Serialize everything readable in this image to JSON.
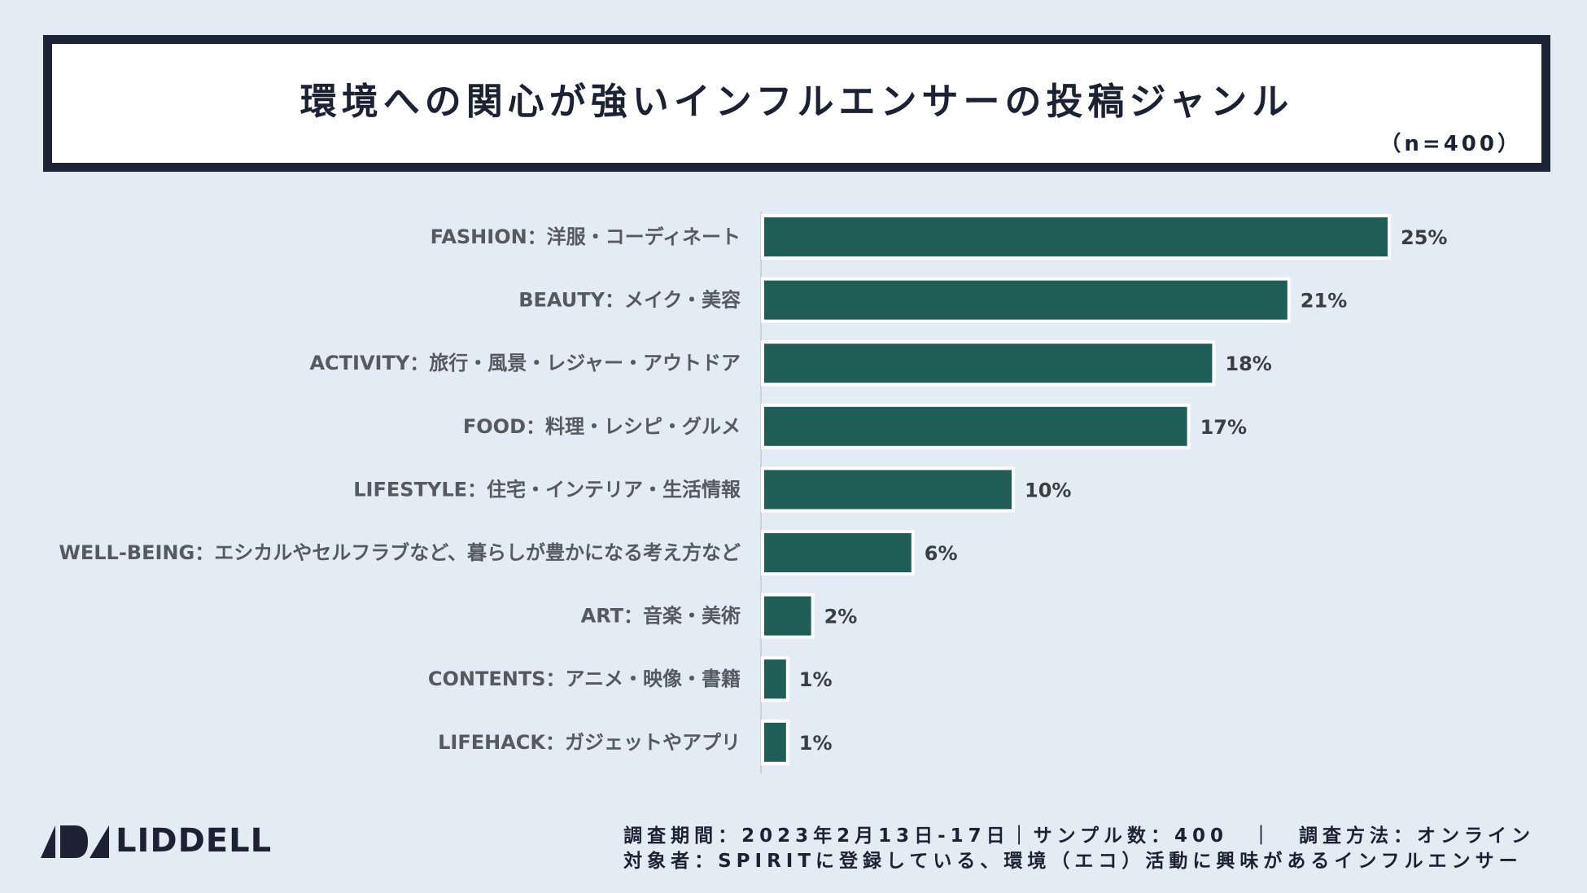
{
  "header": {
    "title": "環境への関心が強いインフルエンサーの投稿ジャンル",
    "sample_size": "（n=400）"
  },
  "chart_data": {
    "type": "bar",
    "orientation": "horizontal",
    "title": "環境への関心が強いインフルエンサーの投稿ジャンル",
    "categories": [
      "FASHION：洋服・コーディネート",
      "BEAUTY：メイク・美容",
      "ACTIVITY：旅行・風景・レジャー・アウトドア",
      "FOOD：料理・レシピ・グルメ",
      "LIFESTYLE：住宅・インテリア・生活情報",
      "WELL-BEING：エシカルやセルフラブなど、暮らしが豊かになる考え方など",
      "ART：音楽・美術",
      "CONTENTS：アニメ・映像・書籍",
      "LIFEHACK：ガジェットやアプリ"
    ],
    "values": [
      25,
      21,
      18,
      17,
      10,
      6,
      2,
      1,
      1
    ],
    "value_labels": [
      "25%",
      "21%",
      "18%",
      "17%",
      "10%",
      "6%",
      "2%",
      "1%",
      "1%"
    ],
    "unit": "%",
    "xlim": [
      0,
      25
    ],
    "xlabel": "",
    "ylabel": "",
    "bar_color": "#1f5e57"
  },
  "footer": {
    "brand": "LIDDELL",
    "line1": "調査期間：2023年2月13日-17日｜サンプル数：400　｜　調査方法：オンライン",
    "line2": "対象者：SPIRITに登録している、環境（エコ）活動に興味があるインフルエンサー"
  },
  "colors": {
    "background": "#e3ebf4",
    "title_border": "#1c2538",
    "bar": "#1f5e57"
  }
}
